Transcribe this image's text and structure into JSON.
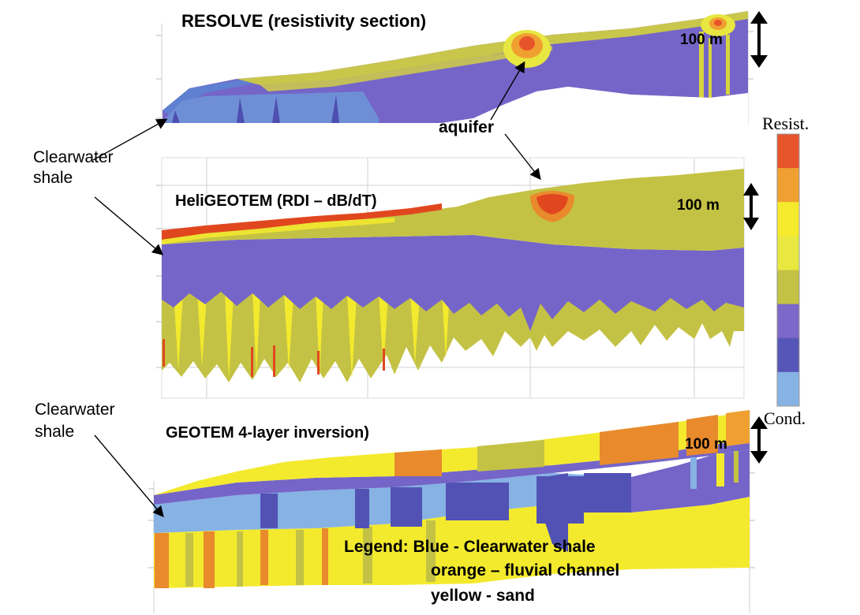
{
  "panels": {
    "resolve": {
      "title": "RESOLVE (resistivity section)",
      "scale": "100 m"
    },
    "heligeotem": {
      "title": "HeliGEOTEM (RDI – dB/dT)",
      "scale": "100 m"
    },
    "geotem": {
      "title": "GEOTEM 4-layer inversion)",
      "scale": "100 m"
    }
  },
  "annotations": {
    "aquifer": "aquifer",
    "shale_top": [
      "Clearwater",
      "shale"
    ],
    "shale_bottom": [
      "Clearwater",
      "shale"
    ]
  },
  "colorbar": {
    "top_label": "Resist.",
    "bottom_label": "Cond.",
    "colors": [
      "#e8542a",
      "#f0a030",
      "#f6ea2c",
      "#e8e840",
      "#c4c244",
      "#7b68c9",
      "#5656b8",
      "#86b2e4"
    ]
  },
  "legend": {
    "line1": "Legend: Blue  - Clearwater shale",
    "line2": "orange – fluvial channel",
    "line3": "yellow - sand"
  },
  "colors": {
    "purple": "#7565c8",
    "dark_blue": "#5252b5",
    "light_blue": "#86b2e4",
    "olive": "#c4c244",
    "yellow": "#f3ea2e",
    "orange": "#e98a2c",
    "red": "#e1471f"
  }
}
